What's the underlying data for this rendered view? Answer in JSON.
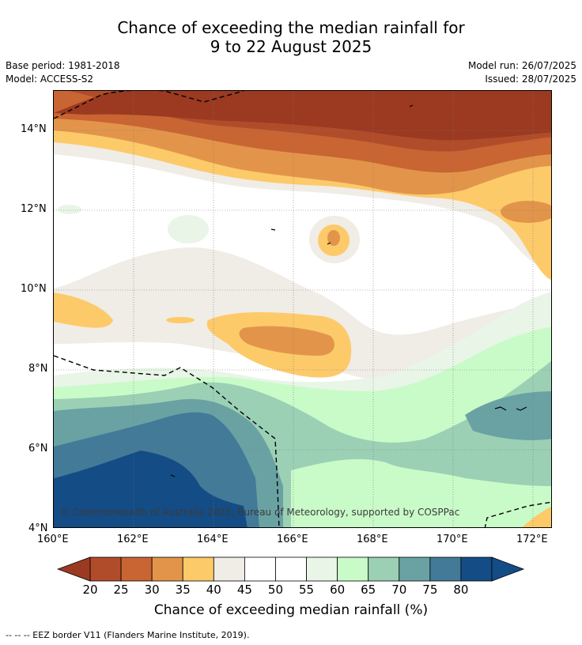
{
  "header": {
    "title_line1": "Chance of exceeding the median rainfall for",
    "title_line2": "9 to 22 August 2025",
    "base_period": "Base period: 1981-2018",
    "model": "Model: ACCESS-S2",
    "model_run": "Model run: 26/07/2025",
    "issued": "Issued: 28/07/2025"
  },
  "map": {
    "copyright": "© Commonwealth of Australia 2025, Bureau of Meteorology, supported by COSPPac",
    "lon_ticks": [
      "160°E",
      "162°E",
      "164°E",
      "166°E",
      "168°E",
      "170°E",
      "172°E"
    ],
    "lat_ticks": [
      "14°N",
      "12°N",
      "10°N",
      "8°N",
      "6°N",
      "4°N"
    ],
    "extent": {
      "lon": [
        160,
        172.5
      ],
      "lat": [
        4,
        15
      ]
    },
    "gridlines": true
  },
  "colorbar": {
    "title": "Chance of exceeding median rainfall (%)",
    "labels": [
      "20",
      "25",
      "30",
      "35",
      "40",
      "45",
      "50",
      "55",
      "60",
      "65",
      "70",
      "75",
      "80"
    ],
    "colors": [
      "#9b3a21",
      "#b14c2b",
      "#c96433",
      "#e2954a",
      "#fdca6a",
      "#f0ece6",
      "#ffffff",
      "#ffffff",
      "#e8f5e7",
      "#c9fbc8",
      "#9bd0b5",
      "#6aa2a3",
      "#427a98",
      "#144c85",
      "#144c85"
    ]
  },
  "footnote": "--  --  -- EEZ border V11 (Flanders Marine Institute, 2019)."
}
